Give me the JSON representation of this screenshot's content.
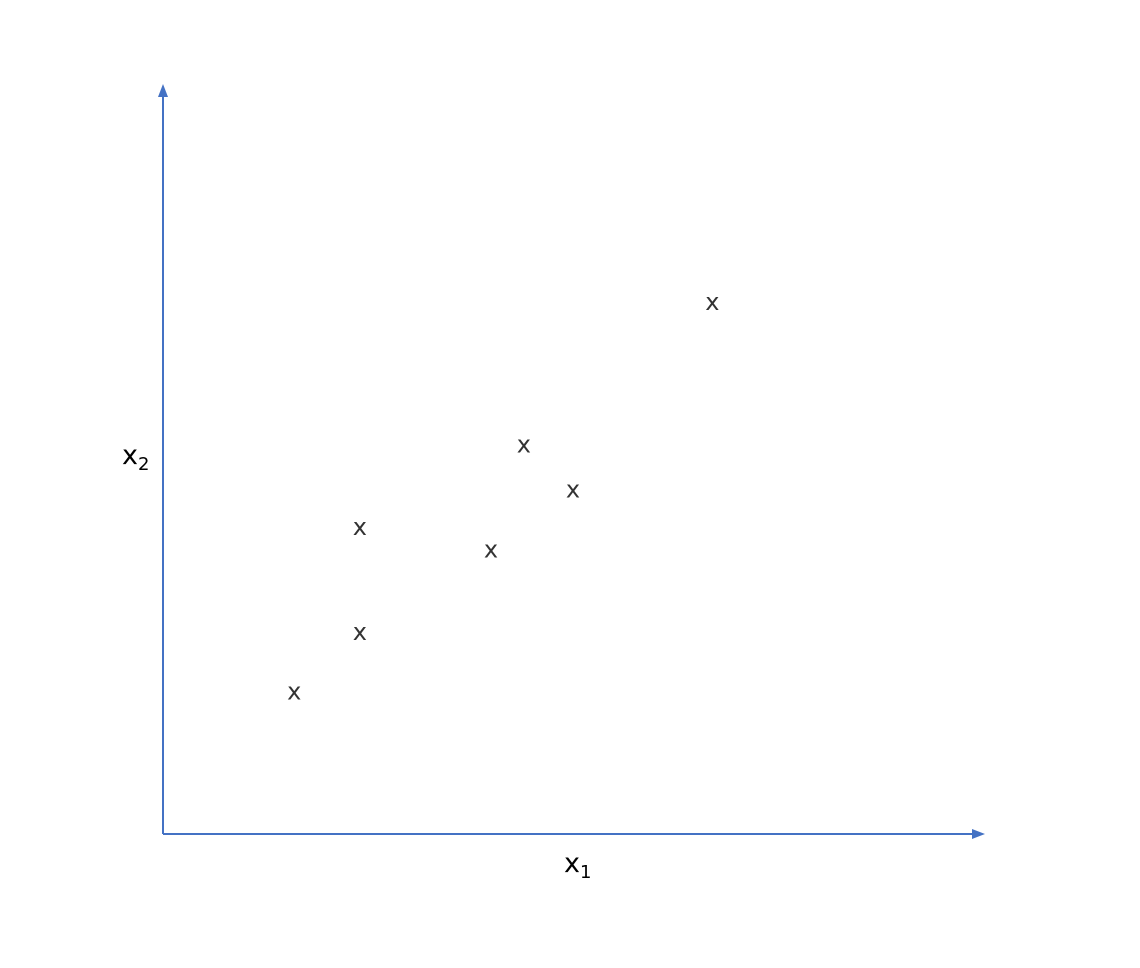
{
  "chart_data": {
    "type": "scatter",
    "xlabel": {
      "base": "x",
      "sub": "1"
    },
    "ylabel": {
      "base": "x",
      "sub": "2"
    },
    "marker": "x",
    "xlim": [
      0,
      10
    ],
    "ylim": [
      0,
      10
    ],
    "grid": false,
    "points": [
      {
        "x": 1.6,
        "y": 1.9
      },
      {
        "x": 2.4,
        "y": 2.7
      },
      {
        "x": 2.4,
        "y": 4.1
      },
      {
        "x": 4.0,
        "y": 3.8
      },
      {
        "x": 4.4,
        "y": 5.2
      },
      {
        "x": 5.0,
        "y": 4.6
      },
      {
        "x": 6.7,
        "y": 7.1
      }
    ],
    "colors": {
      "axis": "#4472C4",
      "marker": "#333333"
    }
  }
}
